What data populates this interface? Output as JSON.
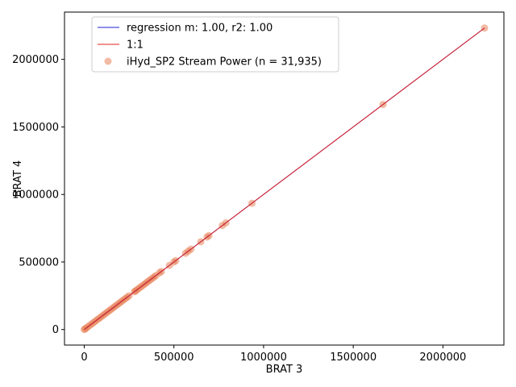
{
  "chart_data": {
    "type": "scatter",
    "xlabel": "BRAT 3",
    "ylabel": "BRAT 4",
    "xlim": [
      -110000,
      2340000
    ],
    "ylim": [
      -115000,
      2350000
    ],
    "x_ticks": [
      0,
      500000,
      1000000,
      1500000,
      2000000
    ],
    "x_tick_labels": [
      "0",
      "500000",
      "1000000",
      "1500000",
      "2000000"
    ],
    "y_ticks": [
      0,
      500000,
      1000000,
      1500000,
      2000000
    ],
    "y_tick_labels": [
      "0",
      "500000",
      "1000000",
      "1500000",
      "2000000"
    ],
    "grid": false,
    "legend_position": "upper-left",
    "scatter_color": "#e8845a",
    "regression_color": "#1f1fd6",
    "one_to_one_color": "#e0201f",
    "series": [
      {
        "name": "iHyd_SP2 Stream Power (n = 31,935)",
        "kind": "scatter",
        "points": [
          [
            2232000,
            2232000
          ],
          [
            1666000,
            1666000
          ],
          [
            935000,
            935000
          ],
          [
            790000,
            790000
          ],
          [
            770000,
            770000
          ],
          [
            695000,
            695000
          ],
          [
            685000,
            685000
          ],
          [
            650000,
            650000
          ],
          [
            595000,
            595000
          ],
          [
            580000,
            580000
          ],
          [
            565000,
            565000
          ],
          [
            510000,
            510000
          ],
          [
            500000,
            500000
          ],
          [
            475000,
            475000
          ],
          [
            430000,
            430000
          ],
          [
            420000,
            420000
          ],
          [
            400000,
            400000
          ],
          [
            390000,
            390000
          ],
          [
            380000,
            380000
          ],
          [
            370000,
            370000
          ],
          [
            360000,
            360000
          ],
          [
            350000,
            350000
          ],
          [
            340000,
            340000
          ],
          [
            330000,
            330000
          ],
          [
            320000,
            320000
          ],
          [
            310000,
            310000
          ],
          [
            300000,
            300000
          ],
          [
            290000,
            290000
          ],
          [
            285000,
            285000
          ],
          [
            280000,
            280000
          ],
          [
            250000,
            250000
          ],
          [
            240000,
            240000
          ],
          [
            230000,
            230000
          ],
          [
            220000,
            220000
          ],
          [
            210000,
            210000
          ],
          [
            200000,
            200000
          ],
          [
            190000,
            190000
          ],
          [
            180000,
            180000
          ],
          [
            170000,
            170000
          ],
          [
            160000,
            160000
          ],
          [
            150000,
            150000
          ],
          [
            140000,
            140000
          ],
          [
            130000,
            130000
          ],
          [
            120000,
            120000
          ],
          [
            110000,
            110000
          ],
          [
            100000,
            100000
          ],
          [
            90000,
            90000
          ],
          [
            80000,
            80000
          ],
          [
            70000,
            70000
          ],
          [
            60000,
            60000
          ],
          [
            50000,
            50000
          ],
          [
            40000,
            40000
          ],
          [
            30000,
            30000
          ],
          [
            20000,
            20000
          ],
          [
            10000,
            10000
          ],
          [
            5000,
            5000
          ],
          [
            0,
            0
          ]
        ]
      },
      {
        "name": "regression m: 1.00, r2: 1.00",
        "kind": "line",
        "x": [
          0,
          2232000
        ],
        "y": [
          0,
          2232000
        ]
      },
      {
        "name": "1:1",
        "kind": "line",
        "x": [
          0,
          2232000
        ],
        "y": [
          0,
          2232000
        ]
      }
    ]
  }
}
